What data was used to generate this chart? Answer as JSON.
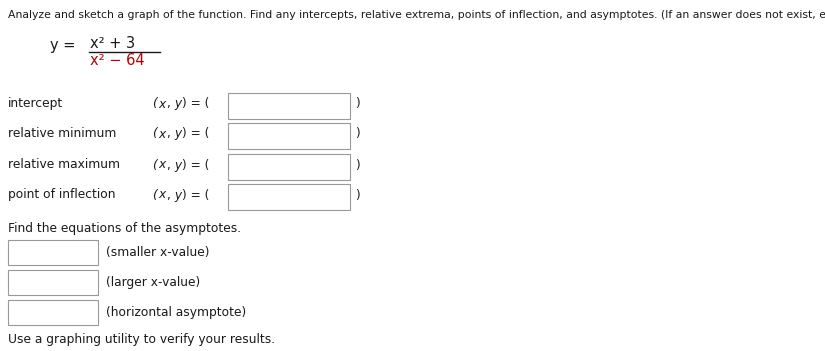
{
  "title_line": "Analyze and sketch a graph of the function. Find any intercepts, relative extrema, points of inflection, and asymptotes. (If an answer does not exist, enter DNE.)",
  "formula_num": "x² + 3",
  "formula_den": "x² − 64",
  "rows": [
    {
      "label": "intercept",
      "xy_label": "(x, y) = ("
    },
    {
      "label": "relative minimum",
      "xy_label": "(x, y) = ("
    },
    {
      "label": "relative maximum",
      "xy_label": "(x, y) = ("
    },
    {
      "label": "point of inflection",
      "xy_label": "(x, y) = ("
    }
  ],
  "asymptote_title": "Find the equations of the asymptotes.",
  "asymptote_labels": [
    "(smaller x-value)",
    "(larger x-value)",
    "(horizontal asymptote)"
  ],
  "footer": "Use a graphing utility to verify your results.",
  "bg_color": "#ffffff",
  "text_color": "#1a1a1a",
  "red_color": "#c00000",
  "box_edge_color": "#999999",
  "font_size_title": 7.8,
  "font_size_body": 8.8,
  "font_size_formula": 10.5
}
